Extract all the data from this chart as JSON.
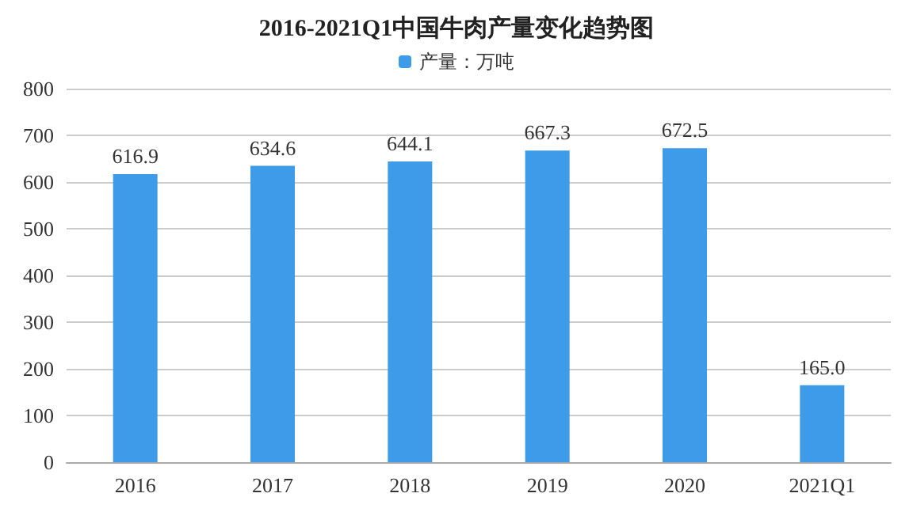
{
  "chart_data": {
    "type": "bar",
    "title": "2016-2021Q1中国牛肉产量变化趋势图",
    "categories": [
      "2016",
      "2017",
      "2018",
      "2019",
      "2020",
      "2021Q1"
    ],
    "series": [
      {
        "name": "产量：万吨",
        "color": "#3d9be9",
        "values": [
          616.9,
          634.6,
          644.1,
          667.3,
          672.5,
          165.0
        ]
      }
    ],
    "value_labels": [
      "616.9",
      "634.6",
      "644.1",
      "667.3",
      "672.5",
      "165.0"
    ],
    "ylim": [
      0,
      800
    ],
    "yticks": [
      0,
      100,
      200,
      300,
      400,
      500,
      600,
      700,
      800
    ],
    "grid": "y",
    "legend": "top"
  }
}
